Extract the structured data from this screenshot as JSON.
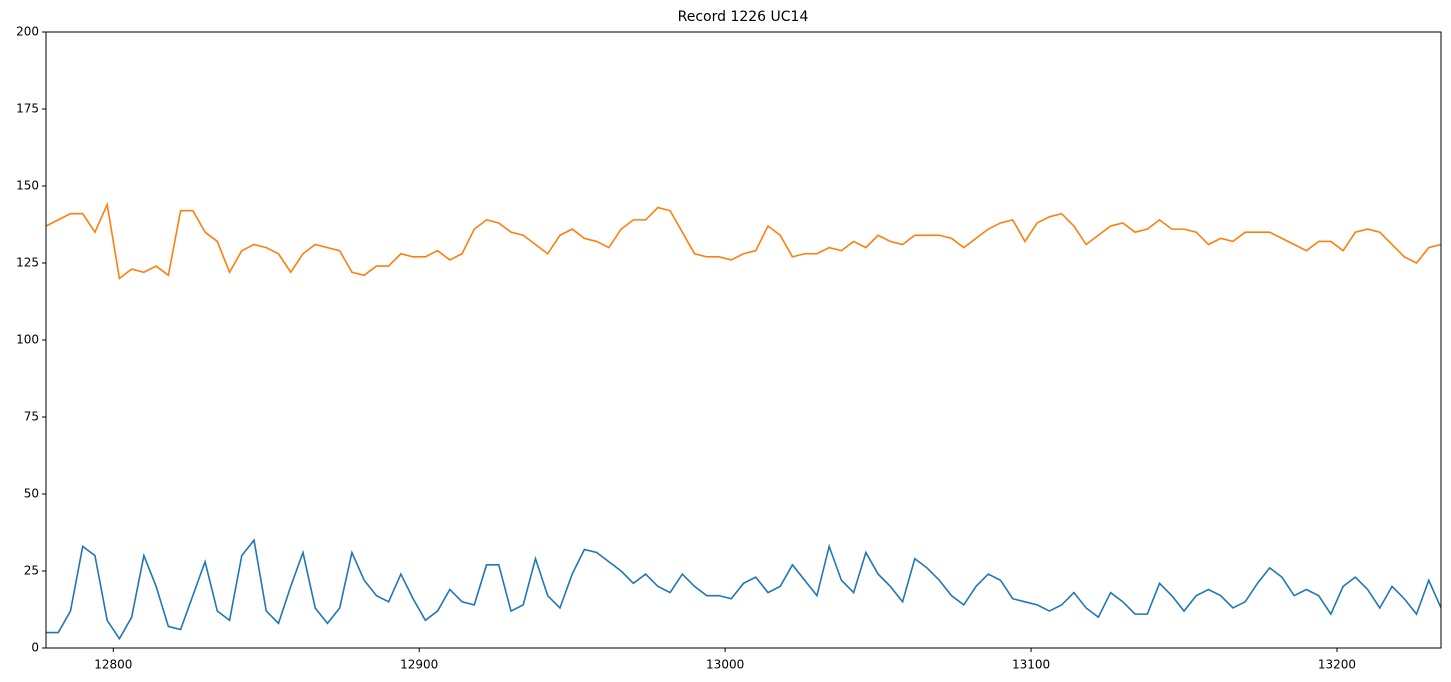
{
  "chart_data": {
    "type": "line",
    "title": "Record 1226 UC14",
    "x": [
      12778,
      12782,
      12786,
      12790,
      12794,
      12798,
      12802,
      12806,
      12810,
      12814,
      12818,
      12822,
      12826,
      12830,
      12834,
      12838,
      12842,
      12846,
      12850,
      12854,
      12858,
      12862,
      12866,
      12870,
      12874,
      12878,
      12882,
      12886,
      12890,
      12894,
      12898,
      12902,
      12906,
      12910,
      12914,
      12918,
      12922,
      12926,
      12930,
      12934,
      12938,
      12942,
      12946,
      12950,
      12954,
      12958,
      12962,
      12966,
      12970,
      12974,
      12978,
      12982,
      12986,
      12990,
      12994,
      12998,
      13002,
      13006,
      13010,
      13014,
      13018,
      13022,
      13026,
      13030,
      13034,
      13038,
      13042,
      13046,
      13050,
      13054,
      13058,
      13062,
      13066,
      13070,
      13074,
      13078,
      13082,
      13086,
      13090,
      13094,
      13098,
      13102,
      13106,
      13110,
      13114,
      13118,
      13122,
      13126,
      13130,
      13134,
      13138,
      13142,
      13146,
      13150,
      13154,
      13158,
      13162,
      13166,
      13170,
      13174,
      13178,
      13182,
      13186,
      13190,
      13194,
      13198,
      13202,
      13206,
      13210,
      13214,
      13218,
      13222,
      13226,
      13230,
      13234
    ],
    "series": [
      {
        "color": "#1f77b4",
        "values": [
          5,
          5,
          12,
          33,
          30,
          9,
          3,
          10,
          30,
          20,
          7,
          6,
          17,
          28,
          12,
          9,
          30,
          35,
          12,
          8,
          20,
          31,
          13,
          8,
          13,
          31,
          22,
          17,
          15,
          24,
          16,
          9,
          12,
          19,
          15,
          14,
          27,
          27,
          12,
          14,
          29,
          17,
          13,
          24,
          32,
          31,
          28,
          25,
          21,
          24,
          20,
          18,
          24,
          20,
          17,
          17,
          16,
          21,
          23,
          18,
          20,
          27,
          22,
          17,
          33,
          22,
          18,
          31,
          24,
          20,
          15,
          29,
          26,
          22,
          17,
          14,
          20,
          24,
          22,
          16,
          15,
          14,
          12,
          14,
          18,
          13,
          10,
          18,
          15,
          11,
          11,
          21,
          17,
          12,
          17,
          19,
          17,
          13,
          15,
          21,
          26,
          23,
          17,
          19,
          17,
          11,
          20,
          23,
          19,
          13,
          20,
          16,
          11,
          22,
          13
        ]
      },
      {
        "color": "#ff7f0e",
        "values": [
          137,
          139,
          141,
          141,
          135,
          144,
          120,
          123,
          122,
          124,
          121,
          142,
          142,
          135,
          132,
          122,
          129,
          131,
          130,
          128,
          122,
          128,
          131,
          130,
          129,
          122,
          121,
          124,
          124,
          128,
          127,
          127,
          129,
          126,
          128,
          136,
          139,
          138,
          135,
          134,
          131,
          128,
          134,
          136,
          133,
          132,
          130,
          136,
          139,
          139,
          143,
          142,
          135,
          128,
          127,
          127,
          126,
          128,
          129,
          137,
          134,
          127,
          128,
          128,
          130,
          129,
          132,
          130,
          134,
          132,
          131,
          134,
          134,
          134,
          133,
          130,
          133,
          136,
          138,
          139,
          132,
          138,
          140,
          141,
          137,
          131,
          134,
          137,
          138,
          135,
          136,
          139,
          136,
          136,
          135,
          131,
          133,
          132,
          135,
          135,
          135,
          133,
          131,
          129,
          132,
          132,
          129,
          135,
          136,
          135,
          131,
          127,
          125,
          130,
          131
        ]
      }
    ],
    "xlim": [
      12778,
      13234
    ],
    "xticks": [
      12800,
      12900,
      13000,
      13100,
      13200
    ],
    "ylim": [
      0,
      200
    ],
    "yticks": [
      0,
      25,
      50,
      75,
      100,
      125,
      150,
      175,
      200
    ],
    "grid": false
  }
}
